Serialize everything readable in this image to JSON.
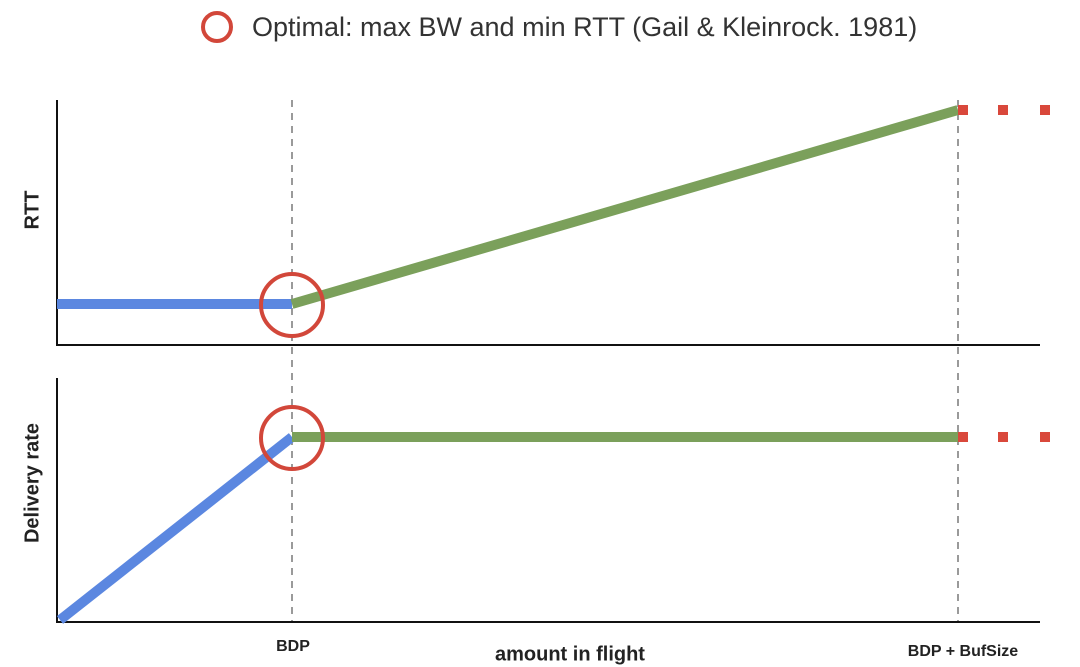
{
  "legend": {
    "label": "Optimal: max BW and min RTT (Gail & Kleinrock. 1981)"
  },
  "top_panel": {
    "y_label": "RTT"
  },
  "bottom_panel": {
    "y_label": "Delivery rate"
  },
  "x_axis": {
    "title": "amount in flight",
    "labels": [
      "BDP",
      "BDP + BufSize"
    ]
  }
}
